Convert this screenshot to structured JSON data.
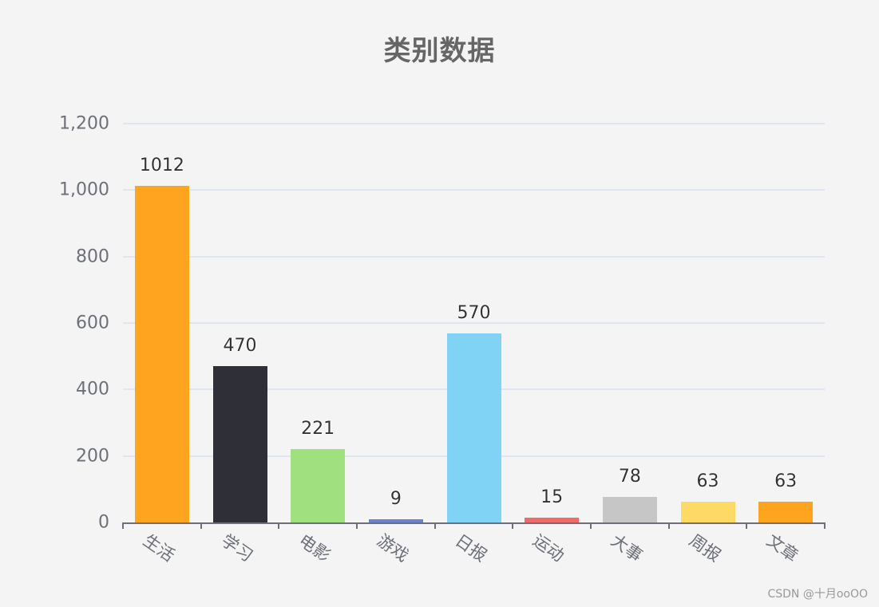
{
  "chart_data": {
    "type": "bar",
    "title": "类别数据",
    "xlabel": "",
    "ylabel": "",
    "categories": [
      "生活",
      "学习",
      "电影",
      "游戏",
      "日报",
      "运动",
      "大事",
      "周报",
      "文章"
    ],
    "values": [
      1012,
      470,
      221,
      9,
      570,
      15,
      78,
      63,
      63
    ],
    "colors": [
      "#ffa41f",
      "#2f3037",
      "#a0e07e",
      "#6a83c9",
      "#80d3f5",
      "#f06a6a",
      "#c6c6c6",
      "#ffd966",
      "#ffa41f"
    ],
    "ylim": [
      0,
      1200
    ],
    "yticks": [
      "0",
      "200",
      "400",
      "600",
      "800",
      "1,000",
      "1,200"
    ],
    "ytick_values": [
      0,
      200,
      400,
      600,
      800,
      1000,
      1200
    ],
    "grid": true,
    "legend": null,
    "data_labels": true,
    "xtick_rotation": 35
  },
  "watermark": "CSDN @十月ooOO"
}
